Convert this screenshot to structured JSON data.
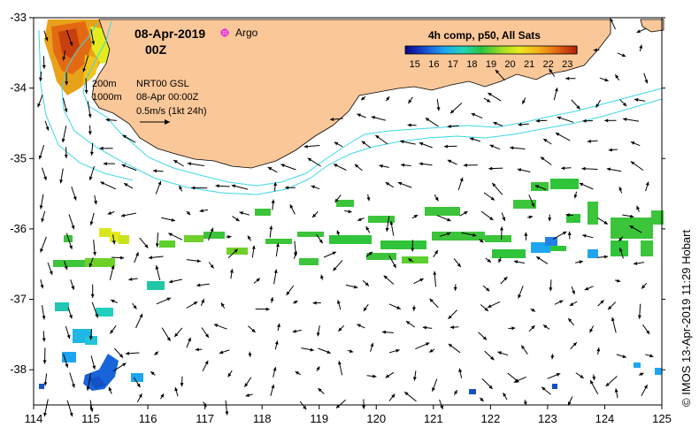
{
  "title": {
    "date": "08-Apr-2019",
    "time": "00Z",
    "argo_label": "Argo"
  },
  "colorbar": {
    "title": "4h comp, p50, All Sats",
    "ticks": [
      "15",
      "16",
      "17",
      "18",
      "19",
      "20",
      "21",
      "22",
      "23"
    ],
    "min": 14.5,
    "max": 23.5,
    "colors": [
      "#0a0a8c",
      "#1750d2",
      "#1fa6f0",
      "#22d6b8",
      "#29c43e",
      "#9bdc24",
      "#e8ec1c",
      "#f5b21a",
      "#e36a12",
      "#b3230c"
    ]
  },
  "legend": {
    "isobath_200": "200m",
    "isobath_1000": "1000m",
    "product": "NRT00 GSL",
    "product_time": "08-Apr 00:00Z",
    "vector_scale": "0.5m/s (1kt 24h)"
  },
  "axes": {
    "lon_ticks": [
      "114",
      "115",
      "116",
      "117",
      "118",
      "119",
      "120",
      "121",
      "122",
      "123",
      "124",
      "125"
    ],
    "lat_ticks": [
      "-33",
      "-34",
      "-35",
      "-36",
      "-37",
      "-38"
    ],
    "lon_min": 114,
    "lon_max": 125,
    "lat_min": -38.5,
    "lat_max": -33
  },
  "credit": "© IMOS 13-Apr-2019 11:29 Hobart",
  "colors": {
    "land": "#fac798",
    "isobath": "#3fd7e6",
    "argo": "#e536e5",
    "vector": "#000000"
  }
}
